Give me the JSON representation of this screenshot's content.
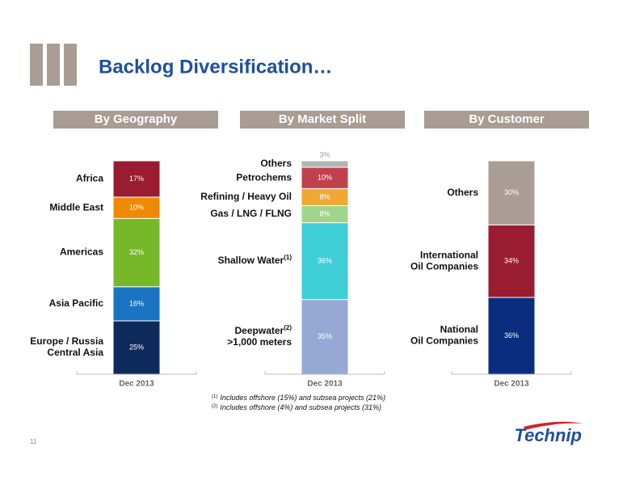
{
  "title": "Backlog Diversification…",
  "page_number": "11",
  "logo": "Technip",
  "footnotes": [
    {
      "mark": "(1)",
      "text": "Includes offshore (15%) and subsea projects  (21%)"
    },
    {
      "mark": "(2)",
      "text": "Includes offshore  (4%) and subsea projects  (31%)"
    }
  ],
  "chart_data": [
    {
      "type": "stacked_bar",
      "title": "By Geography",
      "categories": [
        "Dec 2013"
      ],
      "series": [
        {
          "name": [
            "Europe / Russia",
            "Central Asia"
          ],
          "color": "#0e2a5c",
          "values": [
            25
          ],
          "value_labels": [
            "25%"
          ]
        },
        {
          "name": [
            "Asia Pacific"
          ],
          "color": "#1b74c2",
          "values": [
            16
          ],
          "value_labels": [
            "16%"
          ]
        },
        {
          "name": [
            "Americas"
          ],
          "color": "#76b82a",
          "values": [
            32
          ],
          "value_labels": [
            "32%"
          ]
        },
        {
          "name": [
            "Middle East"
          ],
          "color": "#ef8a00",
          "values": [
            10
          ],
          "value_labels": [
            "10%"
          ]
        },
        {
          "name": [
            "Africa"
          ],
          "color": "#9a1c31",
          "values": [
            17
          ],
          "value_labels": [
            "17%"
          ]
        }
      ]
    },
    {
      "type": "stacked_bar",
      "title": "By Market Split",
      "categories": [
        "Dec 2013"
      ],
      "series": [
        {
          "name": [
            "Deepwater",
            ">1,000 meters"
          ],
          "note": "(2)",
          "color": "#95a9d4",
          "values": [
            35
          ],
          "value_labels": [
            "35%"
          ]
        },
        {
          "name": [
            "Shallow  Water"
          ],
          "note": "(1)",
          "color": "#3ecfd6",
          "values": [
            36
          ],
          "value_labels": [
            "36%"
          ]
        },
        {
          "name": [
            "Gas / LNG / FLNG"
          ],
          "color": "#9fd68b",
          "values": [
            8
          ],
          "value_labels": [
            "8%"
          ]
        },
        {
          "name": [
            "Refining / Heavy Oil"
          ],
          "color": "#f0a832",
          "values": [
            8
          ],
          "value_labels": [
            "8%"
          ]
        },
        {
          "name": [
            "Petrochems"
          ],
          "color": "#c0414b",
          "values": [
            10
          ],
          "value_labels": [
            "10%"
          ]
        },
        {
          "name": [
            "Others"
          ],
          "color": "#b3b3b3",
          "values": [
            3
          ],
          "value_labels": [
            "3%"
          ]
        }
      ]
    },
    {
      "type": "stacked_bar",
      "title": "By Customer",
      "categories": [
        "Dec 2013"
      ],
      "series": [
        {
          "name": [
            "National",
            "Oil Companies"
          ],
          "color": "#0b2d80",
          "values": [
            36
          ],
          "value_labels": [
            "36%"
          ]
        },
        {
          "name": [
            "International",
            "Oil Companies"
          ],
          "color": "#9a1c31",
          "values": [
            34
          ],
          "value_labels": [
            "34%"
          ]
        },
        {
          "name": [
            "Others"
          ],
          "color": "#a99d95",
          "values": [
            30
          ],
          "value_labels": [
            "30%"
          ]
        }
      ]
    }
  ]
}
